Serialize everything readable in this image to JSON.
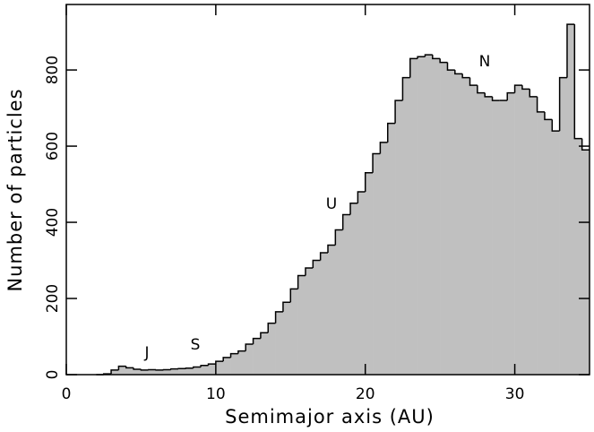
{
  "chart_data": {
    "type": "histogram",
    "xlabel": "Semimajor axis (AU)",
    "ylabel": "Number of particles",
    "bins": [
      2.0,
      2.5,
      3.0,
      3.5,
      4.0,
      4.5,
      5.0,
      5.5,
      6.0,
      6.5,
      7.0,
      7.5,
      8.0,
      8.5,
      9.0,
      9.5,
      10.0,
      10.5,
      11.0,
      11.5,
      12.0,
      12.5,
      13.0,
      13.5,
      14.0,
      14.5,
      15.0,
      15.5,
      16.0,
      16.5,
      17.0,
      17.5,
      18.0,
      18.5,
      19.0,
      19.5,
      20.0,
      20.5,
      21.0,
      21.5,
      22.0,
      22.5,
      23.0,
      23.5,
      24.0,
      24.5,
      25.0,
      25.5,
      26.0,
      26.5,
      27.0,
      27.5,
      28.0,
      28.5,
      29.0,
      29.5,
      30.0,
      30.5,
      31.0,
      31.5,
      32.0,
      32.5,
      33.0,
      33.5,
      34.0,
      34.5,
      35.0
    ],
    "values": [
      0,
      2,
      12,
      22,
      18,
      14,
      12,
      13,
      12,
      13,
      15,
      16,
      17,
      20,
      24,
      28,
      35,
      45,
      55,
      62,
      80,
      95,
      110,
      135,
      165,
      190,
      225,
      260,
      280,
      300,
      320,
      340,
      380,
      420,
      450,
      480,
      530,
      580,
      610,
      660,
      720,
      780,
      830,
      835,
      840,
      830,
      820,
      800,
      790,
      780,
      760,
      740,
      730,
      720,
      720,
      740,
      760,
      750,
      730,
      690,
      670,
      640,
      780,
      920,
      620,
      590
    ],
    "color": "#c0c0c0",
    "xlim": [
      0,
      35
    ],
    "ylim": [
      0,
      972
    ],
    "xticks": [
      0,
      10,
      20,
      30
    ],
    "yticks": [
      0,
      200,
      400,
      600,
      800
    ],
    "annotations": [
      "J",
      "S",
      "U",
      "N"
    ]
  }
}
